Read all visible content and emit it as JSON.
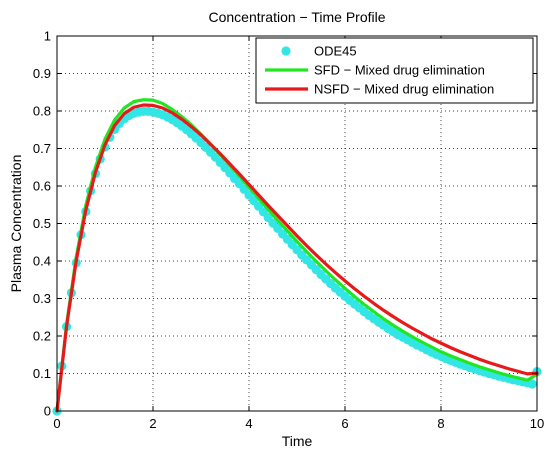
{
  "chart_data": {
    "type": "line",
    "title": "Concentration − Time Profile",
    "xlabel": "Time",
    "ylabel": "Plasma Concentration",
    "xlim": [
      0,
      10
    ],
    "ylim": [
      0,
      1
    ],
    "xticks": [
      0,
      2,
      4,
      6,
      8,
      10
    ],
    "xtick_labels": [
      "0",
      "2",
      "4",
      "6",
      "8",
      "10"
    ],
    "yticks": [
      0,
      0.1,
      0.2,
      0.3,
      0.4,
      0.5,
      0.6,
      0.7,
      0.8,
      0.9,
      1
    ],
    "ytick_labels": [
      "0",
      "0.1",
      "0.2",
      "0.3",
      "0.4",
      "0.5",
      "0.6",
      "0.7",
      "0.8",
      "0.9",
      "1"
    ],
    "grid": true,
    "legend_position": "top-right",
    "series": [
      {
        "name": "ODE45",
        "style": "markers",
        "color": "#33e6e6",
        "x": [
          0,
          0.1,
          0.2,
          0.3,
          0.4,
          0.5,
          0.6,
          0.7,
          0.8,
          0.9,
          1.0,
          1.1,
          1.2,
          1.3,
          1.4,
          1.5,
          1.6,
          1.7,
          1.8,
          1.9,
          2.0,
          2.1,
          2.2,
          2.3,
          2.4,
          2.5,
          2.6,
          2.7,
          2.8,
          2.9,
          3.0,
          3.1,
          3.2,
          3.3,
          3.4,
          3.5,
          3.6,
          3.7,
          3.8,
          3.9,
          4.0,
          4.1,
          4.2,
          4.3,
          4.4,
          4.5,
          4.6,
          4.7,
          4.8,
          4.9,
          5.0,
          5.1,
          5.2,
          5.3,
          5.4,
          5.5,
          5.6,
          5.7,
          5.8,
          5.9,
          6.0,
          6.1,
          6.2,
          6.3,
          6.4,
          6.5,
          6.6,
          6.7,
          6.8,
          6.9,
          7.0,
          7.1,
          7.2,
          7.3,
          7.4,
          7.5,
          7.6,
          7.7,
          7.8,
          7.9,
          8.0,
          8.1,
          8.2,
          8.3,
          8.4,
          8.5,
          8.6,
          8.7,
          8.8,
          8.9,
          9.0,
          9.1,
          9.2,
          9.3,
          9.4,
          9.5,
          9.6,
          9.7,
          9.8,
          9.9,
          10.0
        ],
        "y": [
          0.0,
          0.12,
          0.225,
          0.315,
          0.395,
          0.47,
          0.532,
          0.587,
          0.633,
          0.672,
          0.704,
          0.73,
          0.751,
          0.767,
          0.779,
          0.788,
          0.794,
          0.797,
          0.799,
          0.799,
          0.797,
          0.794,
          0.79,
          0.784,
          0.777,
          0.769,
          0.76,
          0.75,
          0.739,
          0.728,
          0.716,
          0.703,
          0.69,
          0.677,
          0.663,
          0.649,
          0.635,
          0.62,
          0.606,
          0.591,
          0.576,
          0.561,
          0.546,
          0.531,
          0.516,
          0.501,
          0.487,
          0.472,
          0.458,
          0.444,
          0.43,
          0.416,
          0.403,
          0.39,
          0.377,
          0.364,
          0.352,
          0.34,
          0.328,
          0.317,
          0.306,
          0.295,
          0.285,
          0.275,
          0.265,
          0.255,
          0.246,
          0.237,
          0.229,
          0.22,
          0.212,
          0.204,
          0.197,
          0.19,
          0.183,
          0.176,
          0.17,
          0.163,
          0.157,
          0.151,
          0.146,
          0.14,
          0.135,
          0.13,
          0.125,
          0.121,
          0.116,
          0.112,
          0.108,
          0.104,
          0.1,
          0.097,
          0.093,
          0.09,
          0.087,
          0.083,
          0.081,
          0.078,
          0.075,
          0.072,
          0.105
        ]
      },
      {
        "name": "SFD − Mixed drug elimination",
        "style": "line",
        "color": "#22e622",
        "x": [
          0,
          0.2,
          0.4,
          0.6,
          0.8,
          1.0,
          1.2,
          1.4,
          1.6,
          1.8,
          2.0,
          2.2,
          2.4,
          2.6,
          2.8,
          3.0,
          3.2,
          3.4,
          3.6,
          3.8,
          4.0,
          4.2,
          4.4,
          4.6,
          4.8,
          5.0,
          5.2,
          5.4,
          5.6,
          5.8,
          6.0,
          6.2,
          6.4,
          6.6,
          6.8,
          7.0,
          7.2,
          7.4,
          7.6,
          7.8,
          8.0,
          8.2,
          8.4,
          8.6,
          8.8,
          9.0,
          9.2,
          9.4,
          9.6,
          9.8,
          10.0
        ],
        "y": [
          0.0,
          0.232,
          0.41,
          0.548,
          0.65,
          0.725,
          0.776,
          0.808,
          0.825,
          0.83,
          0.829,
          0.82,
          0.804,
          0.785,
          0.763,
          0.738,
          0.712,
          0.684,
          0.655,
          0.626,
          0.596,
          0.567,
          0.537,
          0.508,
          0.48,
          0.452,
          0.425,
          0.399,
          0.374,
          0.35,
          0.327,
          0.305,
          0.284,
          0.265,
          0.246,
          0.229,
          0.213,
          0.198,
          0.184,
          0.171,
          0.158,
          0.147,
          0.137,
          0.127,
          0.118,
          0.11,
          0.102,
          0.095,
          0.088,
          0.082,
          0.098
        ]
      },
      {
        "name": "NSFD − Mixed drug elimination",
        "style": "line",
        "color": "#e61a1a",
        "x": [
          0,
          0.2,
          0.4,
          0.6,
          0.8,
          1.0,
          1.2,
          1.4,
          1.6,
          1.8,
          2.0,
          2.2,
          2.4,
          2.6,
          2.8,
          3.0,
          3.2,
          3.4,
          3.6,
          3.8,
          4.0,
          4.2,
          4.4,
          4.6,
          4.8,
          5.0,
          5.2,
          5.4,
          5.6,
          5.8,
          6.0,
          6.2,
          6.4,
          6.6,
          6.8,
          7.0,
          7.2,
          7.4,
          7.6,
          7.8,
          8.0,
          8.2,
          8.4,
          8.6,
          8.8,
          9.0,
          9.2,
          9.4,
          9.6,
          9.8,
          10.0
        ],
        "y": [
          0.0,
          0.226,
          0.4,
          0.535,
          0.636,
          0.71,
          0.761,
          0.793,
          0.81,
          0.816,
          0.815,
          0.808,
          0.795,
          0.778,
          0.758,
          0.736,
          0.711,
          0.686,
          0.659,
          0.632,
          0.604,
          0.576,
          0.548,
          0.521,
          0.494,
          0.467,
          0.441,
          0.416,
          0.392,
          0.369,
          0.347,
          0.326,
          0.306,
          0.287,
          0.269,
          0.252,
          0.236,
          0.221,
          0.207,
          0.193,
          0.181,
          0.169,
          0.158,
          0.148,
          0.138,
          0.129,
          0.121,
          0.113,
          0.106,
          0.099,
          0.101
        ]
      }
    ]
  }
}
